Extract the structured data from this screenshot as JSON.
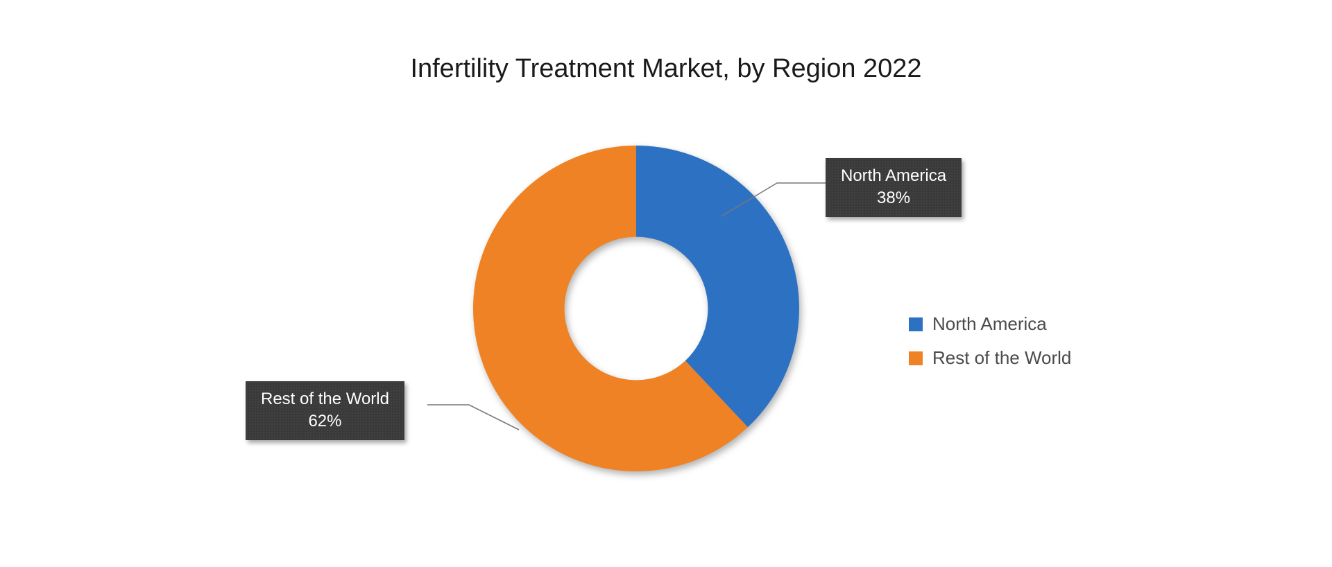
{
  "chart": {
    "type": "donut",
    "title": "Infertility Treatment Market, by Region 2022",
    "title_fontsize": 38,
    "title_color": "#1a1a1a",
    "background_color": "#ffffff",
    "inner_radius_ratio": 0.44,
    "slices": [
      {
        "label": "North America",
        "value": 38,
        "percent_text": "38%",
        "color": "#2d72c2"
      },
      {
        "label": "Rest of the World",
        "value": 62,
        "percent_text": "62%",
        "color": "#ef8224"
      }
    ],
    "callouts": {
      "na": {
        "line1": "North America",
        "line2": "38%"
      },
      "row": {
        "line1": "Rest of the World",
        "line2": "62%"
      }
    },
    "callout_style": {
      "bg": "#3a3a3a",
      "text_color": "#ffffff",
      "fontsize": 24,
      "shadow": "3px 4px 6px rgba(0,0,0,0.35)"
    },
    "leader_color": "#777777",
    "legend": {
      "items": [
        {
          "swatch": "#2d72c2",
          "label": "North America"
        },
        {
          "swatch": "#ef8224",
          "label": "Rest of the World"
        }
      ],
      "fontsize": 26,
      "text_color": "#4a4a4a"
    }
  }
}
